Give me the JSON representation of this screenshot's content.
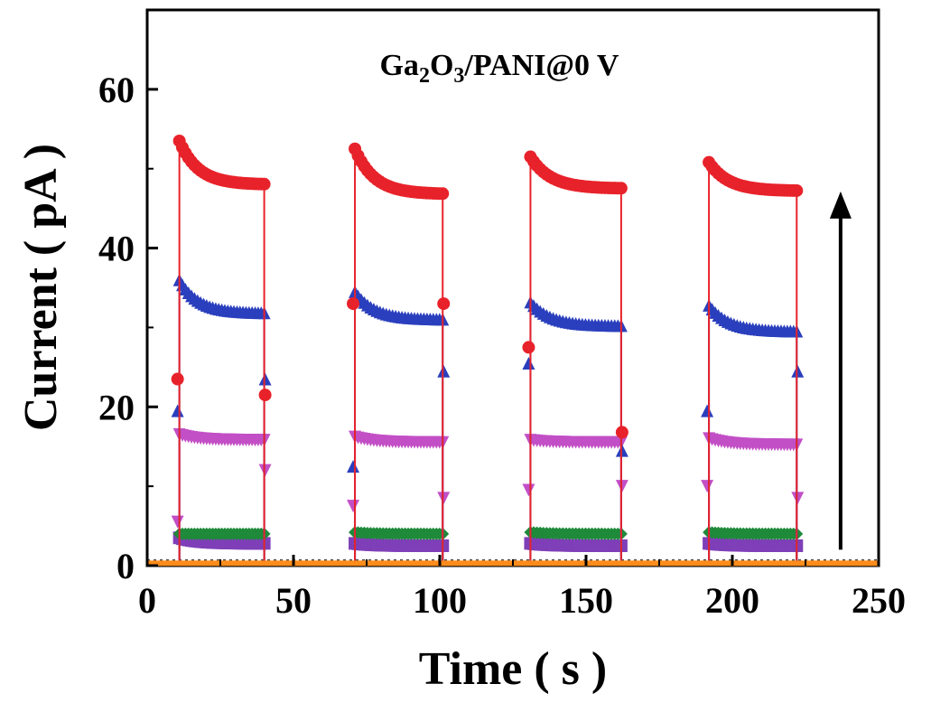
{
  "chart_data": {
    "type": "line",
    "title_parts": [
      "Ga",
      "2",
      "O",
      "3",
      "/PANI@0 V"
    ],
    "xlabel": "Time ( s )",
    "ylabel": "Current ( pA )",
    "xlim": [
      0,
      250
    ],
    "ylim": [
      0,
      70
    ],
    "xticks": [
      "0",
      "50",
      "100",
      "150",
      "200",
      "250"
    ],
    "yticks": [
      "0",
      "20",
      "40",
      "60"
    ],
    "cycles": [
      {
        "on": 11,
        "off": 40
      },
      {
        "on": 71,
        "off": 101
      },
      {
        "on": 131,
        "off": 162
      },
      {
        "on": 192,
        "off": 222
      }
    ],
    "series": [
      {
        "name": "red",
        "color": "#e8222a",
        "marker": "circle",
        "start": [
          53.5,
          52.5,
          51.5,
          50.8
        ],
        "end": [
          48.0,
          46.8,
          47.5,
          47.2
        ],
        "rise": [
          23.5,
          33.0,
          27.5,
          null
        ],
        "fall": [
          21.5,
          33.0,
          16.8,
          null
        ]
      },
      {
        "name": "blue",
        "color": "#2a3fbd",
        "marker": "triangle-up",
        "start": [
          36.0,
          34.5,
          33.2,
          32.8
        ],
        "end": [
          31.8,
          31.0,
          30.2,
          29.5
        ],
        "rise": [
          19.5,
          12.5,
          25.5,
          19.5
        ],
        "fall": [
          23.5,
          24.5,
          14.5,
          24.5
        ]
      },
      {
        "name": "magenta",
        "color": "#c24fc6",
        "marker": "triangle-down",
        "start": [
          16.5,
          16.2,
          15.8,
          16.0
        ],
        "end": [
          15.8,
          15.5,
          15.5,
          15.2
        ],
        "rise": [
          5.5,
          7.5,
          9.5,
          10.0
        ],
        "fall": [
          12.0,
          8.5,
          10.0,
          8.5
        ]
      },
      {
        "name": "green",
        "color": "#1e8a3a",
        "marker": "diamond",
        "start": [
          4.0,
          4.2,
          4.2,
          4.2
        ],
        "end": [
          4.0,
          4.0,
          4.0,
          4.0
        ],
        "rise": [
          null,
          null,
          null,
          null
        ],
        "fall": [
          null,
          null,
          null,
          null
        ]
      },
      {
        "name": "purple",
        "color": "#7f3fb8",
        "marker": "square",
        "start": [
          3.5,
          2.8,
          2.8,
          2.8
        ],
        "end": [
          2.8,
          2.5,
          2.5,
          2.5
        ],
        "rise": [
          null,
          null,
          null,
          null
        ],
        "fall": [
          null,
          null,
          null,
          null
        ]
      }
    ],
    "baseline": {
      "name": "dark",
      "color": "#ff8c1a",
      "value": 0.3
    },
    "dark_reference": {
      "color": "#555555",
      "value": 0.7
    },
    "arrow": {
      "direction": "up",
      "x": 237,
      "from": 2,
      "to": 46
    },
    "grid": false,
    "legend": "none"
  }
}
